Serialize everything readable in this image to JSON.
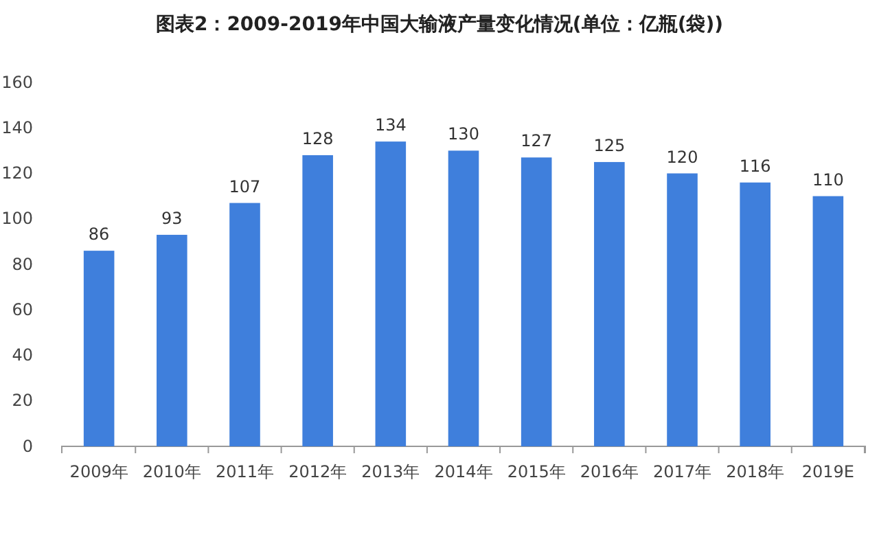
{
  "chart_data": {
    "type": "bar",
    "title": "图表2：2009-2019年中国大输液产量变化情况(单位：亿瓶(袋))",
    "categories": [
      "2009年",
      "2010年",
      "2011年",
      "2012年",
      "2013年",
      "2014年",
      "2015年",
      "2016年",
      "2017年",
      "2018年",
      "2019E"
    ],
    "values": [
      86,
      93,
      107,
      128,
      134,
      130,
      127,
      125,
      120,
      116,
      110
    ],
    "color": "#3f7fdc",
    "ylim": [
      0,
      160
    ],
    "yticks": [
      0,
      20,
      40,
      60,
      80,
      100,
      120,
      140,
      160
    ],
    "data_labels": true
  }
}
